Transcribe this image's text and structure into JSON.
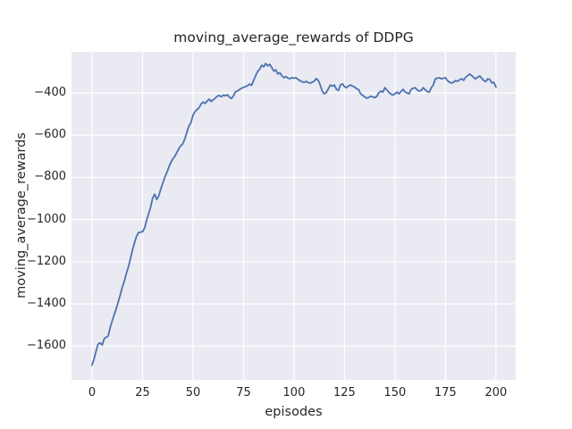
{
  "figure": {
    "title": "moving_average_rewards of DDPG",
    "xlabel": "episodes",
    "ylabel": "moving_average_rewards"
  },
  "chart_data": {
    "type": "line",
    "title": "moving_average_rewards of DDPG",
    "xlabel": "episodes",
    "ylabel": "moving_average_rewards",
    "grid": true,
    "legend": false,
    "plot_bg_color": "#eaeaf2",
    "grid_color": "#ffffff",
    "text_color": "#262626",
    "xlim": [
      -10.2,
      209.8
    ],
    "ylim": [
      -1760,
      -205
    ],
    "xticks": [
      0,
      25,
      50,
      75,
      100,
      125,
      150,
      175,
      200
    ],
    "xtick_labels": [
      "0",
      "25",
      "50",
      "75",
      "100",
      "125",
      "150",
      "175",
      "200"
    ],
    "yticks": [
      -400,
      -600,
      -800,
      -1000,
      -1200,
      -1400,
      -1600
    ],
    "ytick_labels": [
      "−400",
      "−600",
      "−800",
      "−1000",
      "−1200",
      "−1400",
      "−1600"
    ],
    "series": [
      {
        "name": "moving_average_rewards",
        "color": "#4c72b0",
        "line_width": 1.8,
        "x": [
          0,
          1,
          2,
          3,
          4,
          5,
          6,
          7,
          8,
          9,
          10,
          11,
          12,
          13,
          14,
          15,
          16,
          17,
          18,
          19,
          20,
          21,
          22,
          23,
          24,
          25,
          26,
          27,
          28,
          29,
          30,
          31,
          32,
          33,
          34,
          35,
          36,
          37,
          38,
          39,
          40,
          41,
          42,
          43,
          44,
          45,
          46,
          47,
          48,
          49,
          50,
          51,
          52,
          53,
          54,
          55,
          56,
          57,
          58,
          59,
          60,
          61,
          62,
          63,
          64,
          65,
          66,
          67,
          68,
          69,
          70,
          71,
          72,
          73,
          74,
          75,
          76,
          77,
          78,
          79,
          80,
          81,
          82,
          83,
          84,
          85,
          86,
          87,
          88,
          89,
          90,
          91,
          92,
          93,
          94,
          95,
          96,
          97,
          98,
          99,
          100,
          101,
          102,
          103,
          104,
          105,
          106,
          107,
          108,
          109,
          110,
          111,
          112,
          113,
          114,
          115,
          116,
          117,
          118,
          119,
          120,
          121,
          122,
          123,
          124,
          125,
          126,
          127,
          128,
          129,
          130,
          131,
          132,
          133,
          134,
          135,
          136,
          137,
          138,
          139,
          140,
          141,
          142,
          143,
          144,
          145,
          146,
          147,
          148,
          149,
          150,
          151,
          152,
          153,
          154,
          155,
          156,
          157,
          158,
          159,
          160,
          161,
          162,
          163,
          164,
          165,
          166,
          167,
          168,
          169,
          170,
          171,
          172,
          173,
          174,
          175,
          176,
          177,
          178,
          179,
          180,
          181,
          182,
          183,
          184,
          185,
          186,
          187,
          188,
          189,
          190,
          191,
          192,
          193,
          194,
          195,
          196,
          197,
          198,
          199,
          200
        ],
        "y": [
          -1690,
          -1660,
          -1622,
          -1590,
          -1585,
          -1595,
          -1565,
          -1558,
          -1552,
          -1510,
          -1480,
          -1450,
          -1420,
          -1390,
          -1355,
          -1320,
          -1290,
          -1255,
          -1225,
          -1185,
          -1145,
          -1110,
          -1080,
          -1062,
          -1060,
          -1058,
          -1040,
          -1005,
          -972,
          -940,
          -898,
          -880,
          -905,
          -888,
          -855,
          -828,
          -800,
          -778,
          -752,
          -730,
          -712,
          -700,
          -682,
          -663,
          -650,
          -640,
          -615,
          -585,
          -555,
          -540,
          -505,
          -488,
          -478,
          -470,
          -452,
          -443,
          -450,
          -438,
          -430,
          -440,
          -432,
          -425,
          -415,
          -412,
          -418,
          -410,
          -413,
          -408,
          -420,
          -426,
          -414,
          -395,
          -390,
          -384,
          -378,
          -373,
          -370,
          -365,
          -358,
          -364,
          -340,
          -318,
          -298,
          -288,
          -268,
          -276,
          -260,
          -272,
          -264,
          -280,
          -296,
          -290,
          -310,
          -304,
          -318,
          -328,
          -322,
          -330,
          -332,
          -328,
          -330,
          -328,
          -336,
          -342,
          -346,
          -350,
          -345,
          -351,
          -353,
          -349,
          -344,
          -332,
          -340,
          -362,
          -392,
          -404,
          -398,
          -380,
          -362,
          -368,
          -362,
          -383,
          -388,
          -362,
          -357,
          -370,
          -375,
          -367,
          -362,
          -368,
          -371,
          -380,
          -384,
          -404,
          -411,
          -418,
          -425,
          -421,
          -415,
          -418,
          -422,
          -416,
          -400,
          -391,
          -396,
          -375,
          -386,
          -397,
          -405,
          -410,
          -404,
          -396,
          -404,
          -393,
          -383,
          -395,
          -400,
          -404,
          -383,
          -378,
          -375,
          -385,
          -391,
          -388,
          -375,
          -385,
          -393,
          -396,
          -375,
          -362,
          -333,
          -330,
          -328,
          -333,
          -330,
          -328,
          -341,
          -349,
          -353,
          -350,
          -341,
          -345,
          -338,
          -332,
          -340,
          -325,
          -318,
          -310,
          -318,
          -326,
          -333,
          -325,
          -320,
          -330,
          -341,
          -346,
          -333,
          -336,
          -352,
          -350,
          -372
        ]
      }
    ]
  }
}
